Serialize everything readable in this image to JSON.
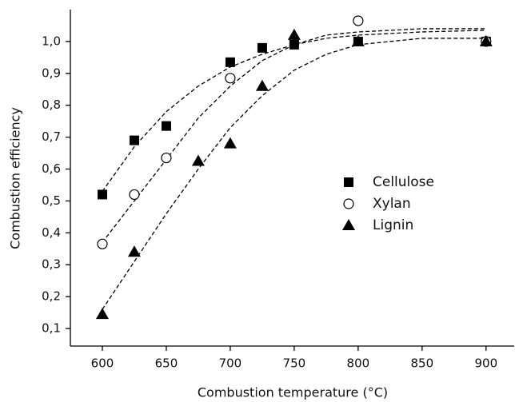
{
  "chart_data": {
    "type": "scatter",
    "xlabel": "Combustion temperature (°C)",
    "ylabel": "Combustion efficiency",
    "xlim": [
      575,
      922
    ],
    "ylim": [
      0.045,
      1.1
    ],
    "xticks": [
      600,
      650,
      700,
      750,
      800,
      850,
      900
    ],
    "yticks": [
      {
        "value": 0.1,
        "label": "0,1"
      },
      {
        "value": 0.2,
        "label": "0,2"
      },
      {
        "value": 0.3,
        "label": "0,3"
      },
      {
        "value": 0.4,
        "label": "0,4"
      },
      {
        "value": 0.5,
        "label": "0,5"
      },
      {
        "value": 0.6,
        "label": "0,6"
      },
      {
        "value": 0.7,
        "label": "0,7"
      },
      {
        "value": 0.8,
        "label": "0,8"
      },
      {
        "value": 0.9,
        "label": "0,9"
      },
      {
        "value": 1.0,
        "label": "1,0"
      }
    ],
    "legend": "center-right",
    "series": [
      {
        "name": "Cellulose",
        "marker": "square",
        "color": "#000000",
        "x": [
          600,
          625,
          650,
          700,
          725,
          750,
          800,
          900
        ],
        "values": [
          0.52,
          0.69,
          0.735,
          0.935,
          0.98,
          0.99,
          1.0,
          1.0
        ],
        "fit": {
          "x": [
            600,
            625,
            650,
            675,
            700,
            725,
            750,
            775,
            800,
            850,
            900
          ],
          "values": [
            0.53,
            0.67,
            0.78,
            0.86,
            0.92,
            0.96,
            0.99,
            1.01,
            1.02,
            1.03,
            1.035
          ]
        }
      },
      {
        "name": "Xylan",
        "marker": "circle",
        "color": "#000000",
        "x": [
          600,
          625,
          650,
          700,
          800,
          900
        ],
        "values": [
          0.365,
          0.52,
          0.635,
          0.885,
          1.065,
          1.0
        ],
        "fit": {
          "x": [
            600,
            625,
            650,
            675,
            700,
            725,
            750,
            775,
            800,
            850,
            900
          ],
          "values": [
            0.37,
            0.5,
            0.63,
            0.76,
            0.86,
            0.94,
            0.99,
            1.02,
            1.03,
            1.04,
            1.04
          ]
        }
      },
      {
        "name": "Lignin",
        "marker": "triangle",
        "color": "#000000",
        "x": [
          600,
          625,
          675,
          700,
          725,
          750,
          800,
          900
        ],
        "values": [
          0.145,
          0.34,
          0.625,
          0.68,
          0.86,
          1.02,
          1.0,
          1.0
        ],
        "fit": {
          "x": [
            600,
            625,
            650,
            675,
            700,
            725,
            750,
            775,
            800,
            850,
            900
          ],
          "values": [
            0.16,
            0.31,
            0.46,
            0.6,
            0.73,
            0.83,
            0.91,
            0.96,
            0.99,
            1.01,
            1.01
          ]
        }
      }
    ]
  }
}
